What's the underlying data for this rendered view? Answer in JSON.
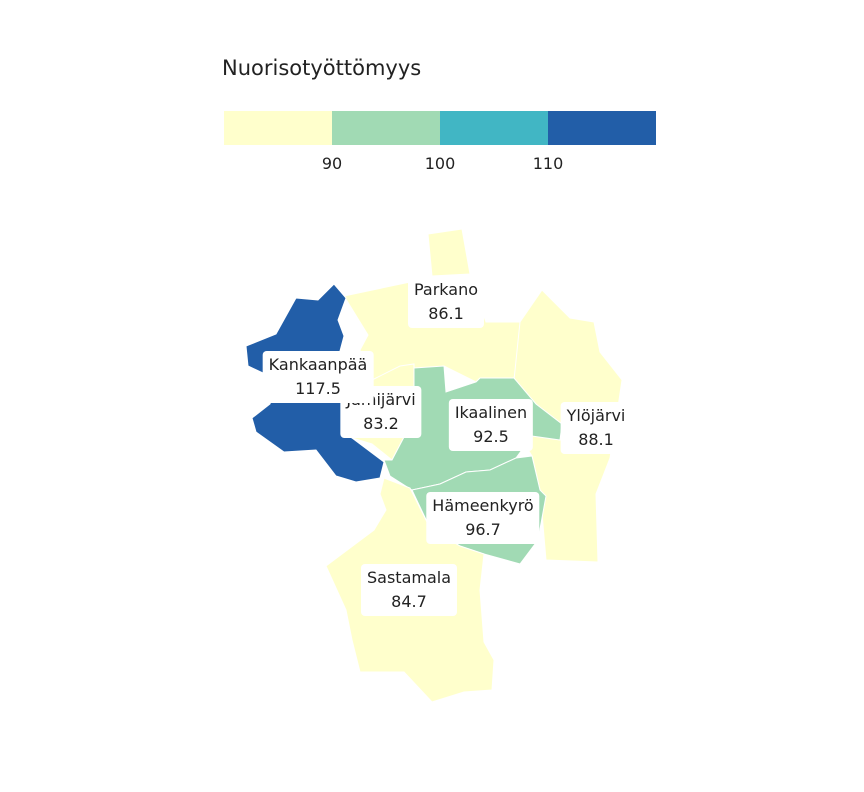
{
  "legend": {
    "title": "Nuorisotyöttömyys",
    "colors": [
      "#ffffcc",
      "#a1dab4",
      "#41b6c4",
      "#225ea8"
    ],
    "ticks": [
      "90",
      "100",
      "110"
    ]
  },
  "regions": [
    {
      "name": "Parkano",
      "value": "86.1",
      "color": "#ffffcc"
    },
    {
      "name": "Kankaanpää",
      "value": "117.5",
      "color": "#225ea8"
    },
    {
      "name": "Jämijärvi",
      "value": "83.2",
      "color": "#ffffcc"
    },
    {
      "name": "Ikaalinen",
      "value": "92.5",
      "color": "#a1dab4"
    },
    {
      "name": "Ylöjärvi",
      "value": "88.1",
      "color": "#ffffcc"
    },
    {
      "name": "Hämeenkyrö",
      "value": "96.7",
      "color": "#a1dab4"
    },
    {
      "name": "Sastamala",
      "value": "84.7",
      "color": "#ffffcc"
    }
  ]
}
